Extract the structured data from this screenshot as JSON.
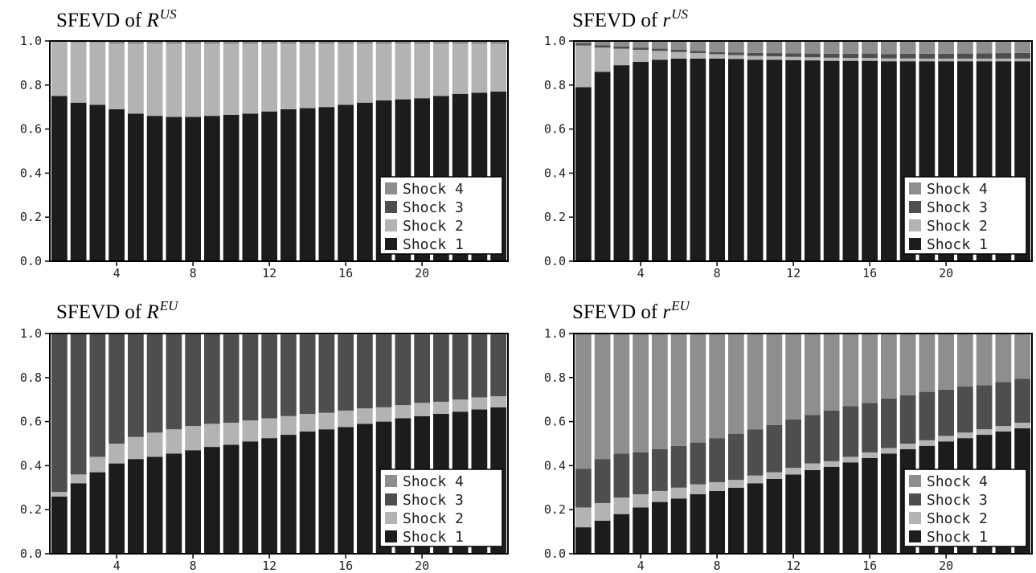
{
  "colors": {
    "shock1": "#1c1c1c",
    "shock2": "#b3b3b3",
    "shock3": "#4e4e4e",
    "shock4": "#8e8e8e"
  },
  "chart_data": [
    {
      "type": "bar",
      "stacked": true,
      "title_prefix": "SFEVD of",
      "title_var": "R",
      "title_sup": "US",
      "x": [
        1,
        2,
        3,
        4,
        5,
        6,
        7,
        8,
        9,
        10,
        11,
        12,
        13,
        14,
        15,
        16,
        17,
        18,
        19,
        20,
        21,
        22,
        23,
        24
      ],
      "xticks": [
        "4",
        "8",
        "12",
        "16",
        "20"
      ],
      "xtick_values": [
        4,
        8,
        12,
        16,
        20
      ],
      "yticks": [
        "0.0",
        "0.2",
        "0.4",
        "0.6",
        "0.8",
        "1.0"
      ],
      "ylim": [
        0,
        1
      ],
      "legend": "bottom-right",
      "legend_entries": [
        "Shock 4",
        "Shock 3",
        "Shock 2",
        "Shock 1"
      ],
      "series": [
        {
          "name": "Shock 1",
          "values": [
            0.75,
            0.72,
            0.71,
            0.69,
            0.67,
            0.66,
            0.655,
            0.655,
            0.66,
            0.665,
            0.67,
            0.68,
            0.69,
            0.695,
            0.7,
            0.71,
            0.72,
            0.73,
            0.735,
            0.74,
            0.75,
            0.76,
            0.765,
            0.77
          ]
        },
        {
          "name": "Shock 2",
          "values": [
            0.25,
            0.275,
            0.285,
            0.3,
            0.32,
            0.33,
            0.335,
            0.335,
            0.33,
            0.325,
            0.32,
            0.31,
            0.3,
            0.295,
            0.29,
            0.28,
            0.27,
            0.26,
            0.255,
            0.25,
            0.24,
            0.23,
            0.225,
            0.22
          ]
        },
        {
          "name": "Shock 3",
          "values": [
            0,
            0.002,
            0.002,
            0.003,
            0.003,
            0.003,
            0.003,
            0.003,
            0.003,
            0.003,
            0.003,
            0.003,
            0.003,
            0.003,
            0.003,
            0.003,
            0.003,
            0.003,
            0.003,
            0.003,
            0.003,
            0.003,
            0.003,
            0.003
          ]
        },
        {
          "name": "Shock 4",
          "values": [
            0,
            0.003,
            0.003,
            0.007,
            0.007,
            0.007,
            0.007,
            0.007,
            0.007,
            0.007,
            0.007,
            0.007,
            0.007,
            0.007,
            0.007,
            0.007,
            0.007,
            0.007,
            0.007,
            0.007,
            0.007,
            0.007,
            0.007,
            0.007
          ]
        }
      ]
    },
    {
      "type": "bar",
      "stacked": true,
      "title_prefix": "SFEVD of",
      "title_var": "r",
      "title_sup": "US",
      "x": [
        1,
        2,
        3,
        4,
        5,
        6,
        7,
        8,
        9,
        10,
        11,
        12,
        13,
        14,
        15,
        16,
        17,
        18,
        19,
        20,
        21,
        22,
        23,
        24
      ],
      "xticks": [
        "4",
        "8",
        "12",
        "16",
        "20"
      ],
      "xtick_values": [
        4,
        8,
        12,
        16,
        20
      ],
      "yticks": [
        "0.0",
        "0.2",
        "0.4",
        "0.6",
        "0.8",
        "1.0"
      ],
      "ylim": [
        0,
        1
      ],
      "legend": "bottom-right",
      "legend_entries": [
        "Shock 4",
        "Shock 3",
        "Shock 2",
        "Shock 1"
      ],
      "series": [
        {
          "name": "Shock 1",
          "values": [
            0.79,
            0.86,
            0.89,
            0.905,
            0.915,
            0.92,
            0.92,
            0.92,
            0.918,
            0.915,
            0.915,
            0.913,
            0.912,
            0.91,
            0.91,
            0.91,
            0.908,
            0.908,
            0.908,
            0.908,
            0.908,
            0.908,
            0.908,
            0.908
          ]
        },
        {
          "name": "Shock 2",
          "values": [
            0.19,
            0.11,
            0.075,
            0.055,
            0.04,
            0.03,
            0.025,
            0.02,
            0.018,
            0.017,
            0.015,
            0.015,
            0.014,
            0.014,
            0.013,
            0.013,
            0.013,
            0.013,
            0.012,
            0.012,
            0.012,
            0.012,
            0.012,
            0.012
          ]
        },
        {
          "name": "Shock 3",
          "values": [
            0.01,
            0.01,
            0.01,
            0.01,
            0.01,
            0.01,
            0.01,
            0.01,
            0.012,
            0.014,
            0.015,
            0.016,
            0.017,
            0.018,
            0.019,
            0.02,
            0.02,
            0.021,
            0.022,
            0.022,
            0.023,
            0.024,
            0.025,
            0.026
          ]
        },
        {
          "name": "Shock 4",
          "values": [
            0.01,
            0.02,
            0.025,
            0.03,
            0.035,
            0.04,
            0.045,
            0.05,
            0.052,
            0.054,
            0.055,
            0.056,
            0.057,
            0.058,
            0.058,
            0.057,
            0.059,
            0.058,
            0.058,
            0.058,
            0.057,
            0.056,
            0.055,
            0.054
          ]
        }
      ]
    },
    {
      "type": "bar",
      "stacked": true,
      "title_prefix": "SFEVD of",
      "title_var": "R",
      "title_sup": "EU",
      "x": [
        1,
        2,
        3,
        4,
        5,
        6,
        7,
        8,
        9,
        10,
        11,
        12,
        13,
        14,
        15,
        16,
        17,
        18,
        19,
        20,
        21,
        22,
        23,
        24
      ],
      "xticks": [
        "4",
        "8",
        "12",
        "16",
        "20"
      ],
      "xtick_values": [
        4,
        8,
        12,
        16,
        20
      ],
      "yticks": [
        "0.0",
        "0.2",
        "0.4",
        "0.6",
        "0.8",
        "1.0"
      ],
      "ylim": [
        0,
        1
      ],
      "legend": "bottom-right",
      "legend_entries": [
        "Shock 4",
        "Shock 3",
        "Shock 2",
        "Shock 1"
      ],
      "series": [
        {
          "name": "Shock 1",
          "values": [
            0.26,
            0.32,
            0.37,
            0.41,
            0.43,
            0.44,
            0.455,
            0.47,
            0.485,
            0.495,
            0.51,
            0.525,
            0.54,
            0.555,
            0.565,
            0.575,
            0.59,
            0.6,
            0.615,
            0.625,
            0.635,
            0.645,
            0.655,
            0.665
          ]
        },
        {
          "name": "Shock 2",
          "values": [
            0.02,
            0.04,
            0.07,
            0.09,
            0.1,
            0.11,
            0.11,
            0.11,
            0.105,
            0.1,
            0.095,
            0.09,
            0.085,
            0.08,
            0.075,
            0.075,
            0.07,
            0.065,
            0.06,
            0.06,
            0.055,
            0.055,
            0.055,
            0.05
          ]
        },
        {
          "name": "Shock 3",
          "values": [
            0.717,
            0.637,
            0.557,
            0.497,
            0.467,
            0.447,
            0.432,
            0.417,
            0.407,
            0.401,
            0.391,
            0.381,
            0.371,
            0.361,
            0.356,
            0.346,
            0.336,
            0.331,
            0.321,
            0.311,
            0.306,
            0.296,
            0.286,
            0.281
          ]
        },
        {
          "name": "Shock 4",
          "values": [
            0.003,
            0.003,
            0.003,
            0.003,
            0.003,
            0.003,
            0.003,
            0.003,
            0.003,
            0.004,
            0.004,
            0.004,
            0.004,
            0.004,
            0.004,
            0.004,
            0.004,
            0.004,
            0.004,
            0.004,
            0.004,
            0.004,
            0.004,
            0.004
          ]
        }
      ]
    },
    {
      "type": "bar",
      "stacked": true,
      "title_prefix": "SFEVD of",
      "title_var": "r",
      "title_sup": "EU",
      "x": [
        1,
        2,
        3,
        4,
        5,
        6,
        7,
        8,
        9,
        10,
        11,
        12,
        13,
        14,
        15,
        16,
        17,
        18,
        19,
        20,
        21,
        22,
        23,
        24
      ],
      "xticks": [
        "4",
        "8",
        "12",
        "16",
        "20"
      ],
      "xtick_values": [
        4,
        8,
        12,
        16,
        20
      ],
      "yticks": [
        "0.0",
        "0.2",
        "0.4",
        "0.6",
        "0.8",
        "1.0"
      ],
      "ylim": [
        0,
        1
      ],
      "legend": "bottom-right",
      "legend_entries": [
        "Shock 4",
        "Shock 3",
        "Shock 2",
        "Shock 1"
      ],
      "series": [
        {
          "name": "Shock 1",
          "values": [
            0.12,
            0.15,
            0.18,
            0.21,
            0.235,
            0.25,
            0.27,
            0.285,
            0.3,
            0.32,
            0.34,
            0.36,
            0.38,
            0.395,
            0.415,
            0.435,
            0.455,
            0.475,
            0.49,
            0.51,
            0.525,
            0.54,
            0.555,
            0.57
          ]
        },
        {
          "name": "Shock 2",
          "values": [
            0.09,
            0.08,
            0.075,
            0.06,
            0.05,
            0.05,
            0.045,
            0.04,
            0.035,
            0.035,
            0.03,
            0.03,
            0.03,
            0.025,
            0.025,
            0.025,
            0.025,
            0.025,
            0.025,
            0.025,
            0.025,
            0.025,
            0.025,
            0.025
          ]
        },
        {
          "name": "Shock 3",
          "values": [
            0.175,
            0.2,
            0.2,
            0.19,
            0.19,
            0.19,
            0.19,
            0.2,
            0.21,
            0.21,
            0.215,
            0.22,
            0.22,
            0.23,
            0.23,
            0.225,
            0.225,
            0.22,
            0.22,
            0.21,
            0.21,
            0.2,
            0.2,
            0.2
          ]
        },
        {
          "name": "Shock 4",
          "values": [
            0.615,
            0.57,
            0.545,
            0.54,
            0.525,
            0.51,
            0.495,
            0.475,
            0.455,
            0.435,
            0.415,
            0.39,
            0.37,
            0.35,
            0.33,
            0.315,
            0.295,
            0.28,
            0.265,
            0.255,
            0.24,
            0.235,
            0.22,
            0.205
          ]
        }
      ]
    }
  ]
}
